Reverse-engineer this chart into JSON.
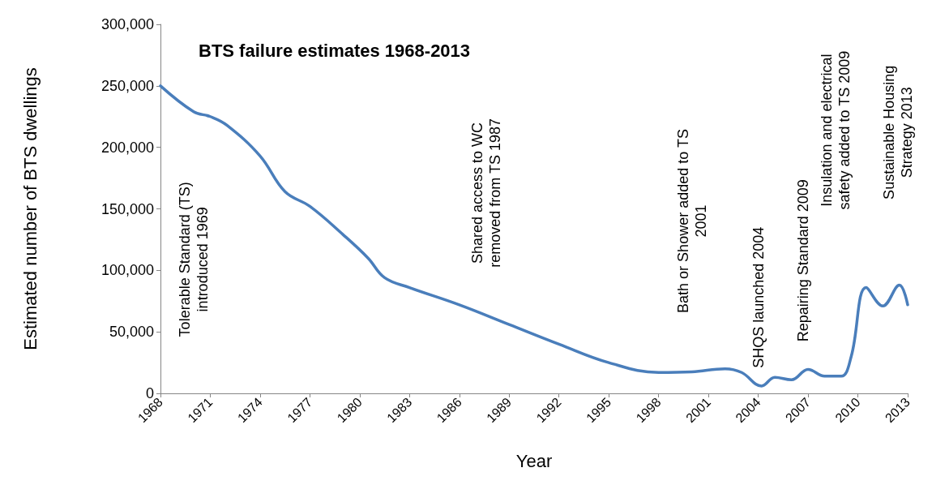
{
  "chart_data": {
    "type": "line",
    "title": "BTS failure estimates 1968-2013",
    "xlabel": "Year",
    "ylabel": "Estimated number of BTS dwellings",
    "x": [
      1968,
      1970,
      1971,
      1972,
      1974,
      1975.5,
      1977,
      1979,
      1980.5,
      1981.5,
      1983,
      1986,
      1989,
      1992,
      1995,
      1998,
      2000,
      2002,
      2003,
      2004.2,
      2005,
      2006,
      2007,
      2008,
      2009,
      2009.6,
      2010.5,
      2011.5,
      2012.5,
      2013
    ],
    "series": [
      {
        "color": "#4a7ebb",
        "values": [
          250000,
          229000,
          225000,
          218000,
          193000,
          164000,
          152000,
          129000,
          110000,
          94000,
          86000,
          72000,
          56000,
          40000,
          25000,
          17000,
          17500,
          20000,
          17000,
          6000,
          13000,
          11000,
          19500,
          14000,
          14000,
          30000,
          86000,
          71000,
          88000,
          72000
        ]
      }
    ],
    "xlim": [
      1968,
      2013
    ],
    "xticks": [
      1968,
      1971,
      1974,
      1977,
      1980,
      1983,
      1986,
      1989,
      1992,
      1995,
      1998,
      2001,
      2004,
      2007,
      2010,
      2013
    ],
    "ylim": [
      0,
      300000
    ],
    "yticks": [
      0,
      {
        "value": 50000,
        "label": "50,000"
      },
      {
        "value": 100000,
        "label": "100,000"
      },
      {
        "value": 150000,
        "label": "150,000"
      },
      {
        "value": 200000,
        "label": "200,000"
      },
      {
        "value": 250000,
        "label": "250,000"
      },
      {
        "value": 300000,
        "label": "300,000"
      }
    ],
    "grid": false,
    "marker": "none",
    "line_style": "solid",
    "annotations": [
      "Tolerable Standard (TS)\nintroduced 1969",
      "Shared access to WC\nremoved from TS 1987",
      "Bath or Shower added to TS\n2001",
      "SHQS launched 2004",
      "Repairing Standard 2009",
      "Insulation and electrical\nsafety added to TS 2009",
      "Sustainable Housing\nStrategy 2013"
    ]
  }
}
